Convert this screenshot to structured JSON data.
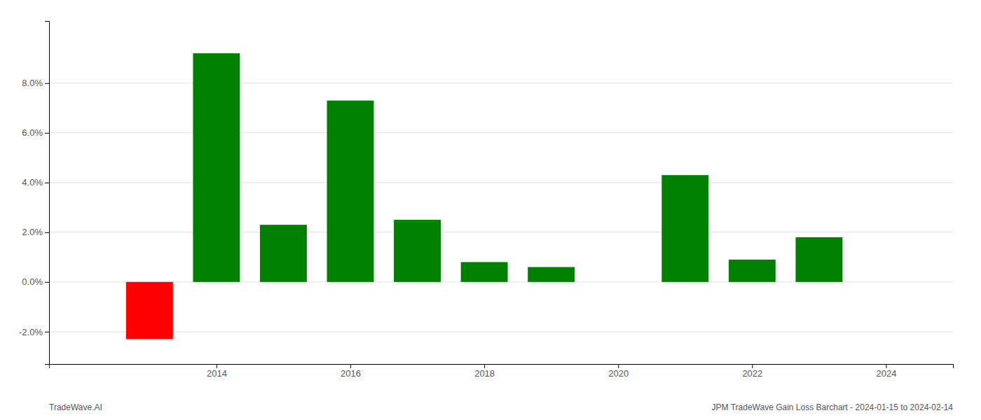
{
  "chart_data": {
    "type": "bar",
    "x": [
      2013,
      2014,
      2015,
      2016,
      2017,
      2018,
      2019,
      2021,
      2022,
      2023
    ],
    "values": [
      -0.023,
      0.092,
      0.023,
      0.073,
      0.025,
      0.008,
      0.006,
      0.043,
      0.009,
      0.018
    ],
    "colors": [
      "#ff0000",
      "#008000",
      "#008000",
      "#008000",
      "#008000",
      "#008000",
      "#008000",
      "#008000",
      "#008000",
      "#008000"
    ],
    "xlim": [
      2011.5,
      2025.0
    ],
    "xticks": [
      2014,
      2016,
      2018,
      2020,
      2022,
      2024
    ],
    "ylim": [
      -0.033,
      0.105
    ],
    "yticks": [
      {
        "value": -0.02,
        "label": "-2.0%"
      },
      {
        "value": 0.0,
        "label": "0.0%"
      },
      {
        "value": 0.02,
        "label": "2.0%"
      },
      {
        "value": 0.04,
        "label": "4.0%"
      },
      {
        "value": 0.06,
        "label": "6.0%"
      },
      {
        "value": 0.08,
        "label": "8.0%"
      }
    ],
    "grid": true,
    "annotations": [
      "TradeWave.AI",
      "JPM TradeWave Gain Loss Barchart - 2024-01-15 to 2024-02-14"
    ]
  }
}
